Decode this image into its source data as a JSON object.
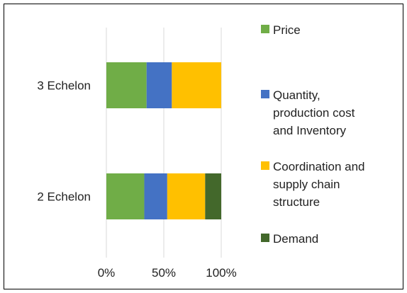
{
  "chart_data": {
    "type": "bar",
    "orientation": "horizontal",
    "stacking": "percent",
    "categories": [
      "3 Echelon",
      "2 Echelon"
    ],
    "series": [
      {
        "name": "Price",
        "values": [
          35,
          33
        ],
        "color": "#70AD47"
      },
      {
        "name": "Quantity, production cost and Inventory",
        "legend_lines": [
          "Quantity,",
          "production cost",
          "and Inventory"
        ],
        "values": [
          22,
          20
        ],
        "color": "#4472C4"
      },
      {
        "name": "Coordination and supply chain structure",
        "legend_lines": [
          "Coordination and",
          "supply chain",
          "structure"
        ],
        "values": [
          43,
          33
        ],
        "color": "#FFC000"
      },
      {
        "name": "Demand",
        "values": [
          0,
          14
        ],
        "color": "#43682B"
      }
    ],
    "x_ticks": [
      "0%",
      "50%",
      "100%"
    ],
    "xlim": [
      0,
      100
    ],
    "grid": "vertical",
    "legend_position": "right",
    "title": "",
    "xlabel": "",
    "ylabel": ""
  }
}
